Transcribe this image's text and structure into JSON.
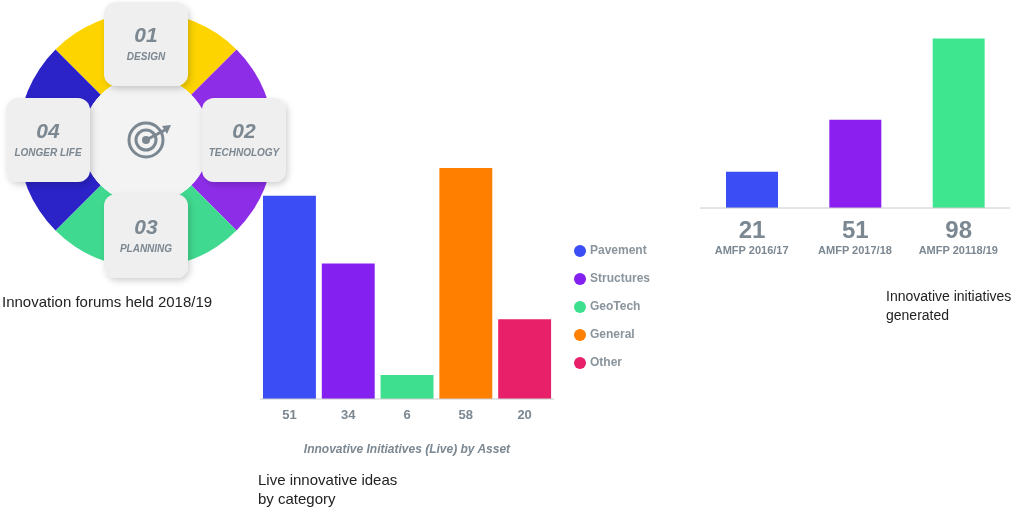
{
  "chart_data": [
    {
      "type": "other",
      "title": "Innovation forums held 2018/19",
      "categories": [
        "DESIGN",
        "TECHNOLOGY",
        "PLANNING",
        "LONGER LIFE"
      ],
      "annotations": [
        "01",
        "02",
        "03",
        "04"
      ],
      "colors": [
        "#fdd400",
        "#8e2de8",
        "#3fd98f",
        "#2b22c8"
      ]
    },
    {
      "type": "bar",
      "title": "Live innovative ideas by category",
      "xlabel": "Innovative Initiatives (Live) by Asset",
      "categories": [
        null,
        null,
        null,
        null,
        null
      ],
      "stacked": true,
      "series": [
        {
          "name": "Pavement",
          "color": "#3b4ef5",
          "values": [
            51,
            null,
            null,
            null,
            null
          ]
        },
        {
          "name": "Structures",
          "color": "#8420f0",
          "values": [
            null,
            34,
            null,
            null,
            null
          ]
        },
        {
          "name": "GeoTech",
          "color": "#3ee08f",
          "values": [
            null,
            null,
            6,
            null,
            null
          ]
        },
        {
          "name": "General",
          "color": "#ff7f00",
          "values": [
            null,
            null,
            null,
            58,
            null
          ]
        },
        {
          "name": "Other",
          "color": "#e8206a",
          "values": [
            null,
            null,
            null,
            null,
            20
          ]
        }
      ],
      "data_labels": true,
      "legend": "right"
    },
    {
      "type": "bar",
      "title": "Innovative initiatives generated",
      "categories": [
        "AMFP 2016/17",
        "AMFP 2017/18",
        "AMFP 20118/19"
      ],
      "values": [
        21,
        51,
        98
      ],
      "colors": [
        "#3b4ef5",
        "#8a1ff0",
        "#3ee690"
      ],
      "data_labels": true,
      "tick_labels": "x"
    }
  ]
}
